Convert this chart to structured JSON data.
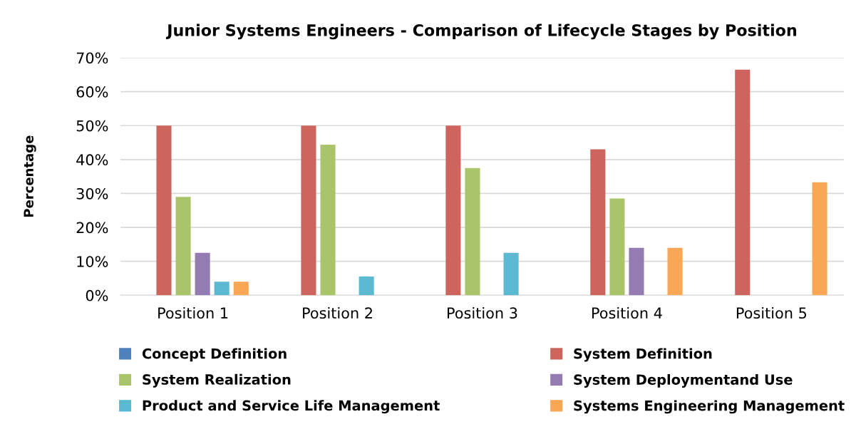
{
  "chart_data": {
    "type": "bar",
    "title": "Junior Systems Engineers - Comparison of Lifecycle Stages by Position",
    "ylabel": "Percentage",
    "categories": [
      "Position 1",
      "Position 2",
      "Position 3",
      "Position 4",
      "Position 5"
    ],
    "series": [
      {
        "name": "Concept Definition",
        "color": "#4f81bd",
        "values": [
          0,
          0,
          0,
          0,
          0
        ]
      },
      {
        "name": "System Definition",
        "color": "#cd645d",
        "values": [
          50,
          50,
          50,
          43,
          66.5
        ]
      },
      {
        "name": "System Realization",
        "color": "#aac46a",
        "values": [
          29,
          44.4,
          37.5,
          28.5,
          0
        ]
      },
      {
        "name": "System Deploymentand Use",
        "color": "#947bb2",
        "values": [
          12.5,
          0,
          0,
          14,
          0
        ]
      },
      {
        "name": "Product and Service Life Management",
        "color": "#5bb9d1",
        "values": [
          4,
          5.5,
          12.5,
          0,
          0
        ]
      },
      {
        "name": "Systems Engineering Management",
        "color": "#f8a755",
        "values": [
          4,
          0,
          0,
          14,
          33.3
        ]
      }
    ],
    "ylim": [
      0,
      70
    ],
    "yticks": [
      {
        "value": 0,
        "label": "0%"
      },
      {
        "value": 10,
        "label": "10%"
      },
      {
        "value": 20,
        "label": "20%"
      },
      {
        "value": 30,
        "label": "30%"
      },
      {
        "value": 40,
        "label": "40%"
      },
      {
        "value": 50,
        "label": "50%"
      },
      {
        "value": 60,
        "label": "60%"
      },
      {
        "value": 70,
        "label": "70%"
      }
    ],
    "grid": "y",
    "legend": "bottom"
  }
}
